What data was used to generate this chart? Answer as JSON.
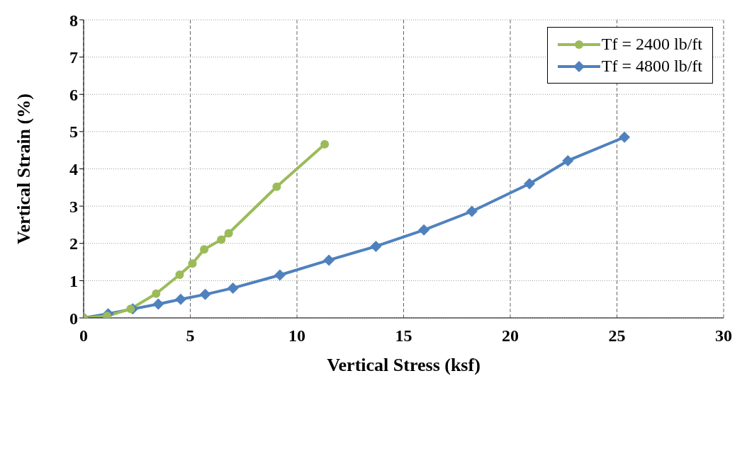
{
  "chart_data": {
    "type": "line",
    "xlabel": "Vertical Stress (ksf)",
    "ylabel": "Vertical Strain (%)",
    "xlim": [
      0,
      30
    ],
    "xticks": [
      0,
      5,
      10,
      15,
      20,
      25,
      30
    ],
    "ylim": [
      0,
      8
    ],
    "yticks": [
      0,
      1,
      2,
      3,
      4,
      5,
      6,
      7,
      8
    ],
    "grid": true,
    "legend": "top right",
    "line_style": "solid",
    "series": [
      {
        "name": "Tf = 2400 lb/ft",
        "color": "#9bbb59",
        "marker": "circle",
        "x": [
          0,
          1.1,
          2.2,
          3.4,
          4.5,
          5.1,
          5.65,
          6.45,
          6.8,
          9.05,
          11.3
        ],
        "values": [
          0,
          0.05,
          0.24,
          0.65,
          1.16,
          1.46,
          1.84,
          2.1,
          2.27,
          3.52,
          4.66
        ]
      },
      {
        "name": "Tf = 4800 lb/ft",
        "color": "#4f81bd",
        "marker": "diamond",
        "x": [
          0,
          1.15,
          2.3,
          3.5,
          4.55,
          5.7,
          7.0,
          9.2,
          11.5,
          13.7,
          15.95,
          18.2,
          20.9,
          22.7,
          25.35
        ],
        "values": [
          0,
          0.11,
          0.24,
          0.37,
          0.5,
          0.63,
          0.8,
          1.15,
          1.55,
          1.92,
          2.36,
          2.86,
          3.6,
          4.22,
          4.85
        ]
      }
    ]
  }
}
